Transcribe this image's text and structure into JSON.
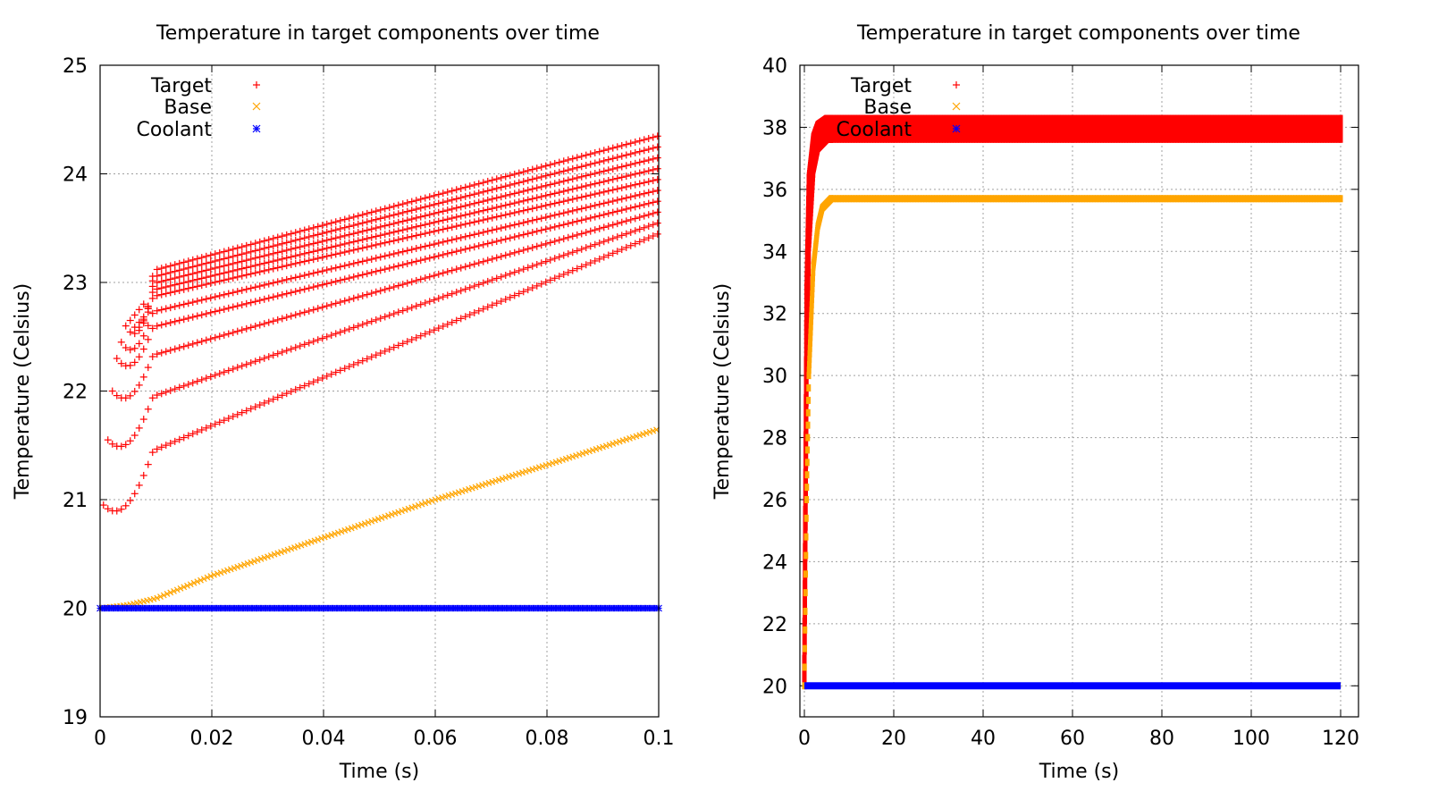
{
  "colors": {
    "target": "#ff0000",
    "base": "#ffa500",
    "coolant": "#0000ff",
    "grid": "#a0a0a0"
  },
  "chart_data": [
    {
      "type": "scatter",
      "title": "Temperature in target components over time",
      "xlabel": "Time (s)",
      "ylabel": "Temperature (Celsius)",
      "xlim": [
        0,
        0.1
      ],
      "ylim": [
        19,
        25
      ],
      "xticks": [
        "0",
        "0.02",
        "0.04",
        "0.06",
        "0.08",
        "0.1"
      ],
      "yticks": [
        "19",
        "20",
        "21",
        "22",
        "23",
        "24",
        "25"
      ],
      "grid": true,
      "legend_position": "top-left",
      "series": [
        {
          "name": "Target",
          "marker": "plus",
          "color": "#ff0000",
          "description_values": {
            "layers": 10,
            "start_x": [
              0.0006,
              0.0014,
              0.0022,
              0.003,
              0.0038,
              0.0046,
              0.0054,
              0.0062,
              0.007,
              0.0078
            ],
            "start_y": [
              20.95,
              21.55,
              22.0,
              22.3,
              22.45,
              22.6,
              22.65,
              22.7,
              22.75,
              22.8
            ],
            "end_y": [
              23.45,
              23.55,
              23.65,
              23.75,
              23.85,
              23.95,
              24.05,
              24.15,
              24.25,
              24.35
            ]
          }
        },
        {
          "name": "Base",
          "marker": "cross",
          "color": "#ffa500",
          "x": [
            0,
            0.005,
            0.01,
            0.02,
            0.04,
            0.06,
            0.08,
            0.1
          ],
          "y": [
            20.0,
            20.03,
            20.09,
            20.3,
            20.65,
            21.0,
            21.32,
            21.65
          ]
        },
        {
          "name": "Coolant",
          "marker": "star",
          "color": "#0000ff",
          "x": [
            0,
            0.1
          ],
          "y": [
            20.0,
            20.0
          ]
        }
      ]
    },
    {
      "type": "scatter",
      "title": "Temperature in target components over time",
      "xlabel": "Time (s)",
      "ylabel": "Temperature (Celsius)",
      "xlim": [
        -1,
        124
      ],
      "ylim": [
        19,
        40
      ],
      "xticks": [
        "0",
        "20",
        "40",
        "60",
        "80",
        "100",
        "120"
      ],
      "yticks": [
        "20",
        "22",
        "24",
        "26",
        "28",
        "30",
        "32",
        "34",
        "36",
        "38",
        "40"
      ],
      "grid": true,
      "legend_position": "top-left",
      "series": [
        {
          "name": "Target",
          "marker": "plus",
          "color": "#ff0000",
          "x": [
            0,
            0.5,
            1,
            2,
            3,
            5,
            10,
            60,
            120
          ],
          "y_band_low": [
            20.0,
            30.0,
            34.0,
            36.5,
            37.2,
            37.5,
            37.5,
            37.5,
            37.5
          ],
          "y_band_high": [
            21.0,
            33.0,
            36.5,
            37.8,
            38.2,
            38.4,
            38.4,
            38.4,
            38.4
          ]
        },
        {
          "name": "Base",
          "marker": "cross",
          "color": "#ffa500",
          "x": [
            0,
            0.5,
            1,
            2,
            3,
            4,
            6,
            10,
            60,
            120
          ],
          "y": [
            20.0,
            26.0,
            30.0,
            33.5,
            34.8,
            35.4,
            35.7,
            35.7,
            35.7,
            35.7
          ]
        },
        {
          "name": "Coolant",
          "marker": "star",
          "color": "#0000ff",
          "x": [
            0,
            120
          ],
          "y": [
            20.0,
            20.0
          ]
        }
      ]
    }
  ]
}
